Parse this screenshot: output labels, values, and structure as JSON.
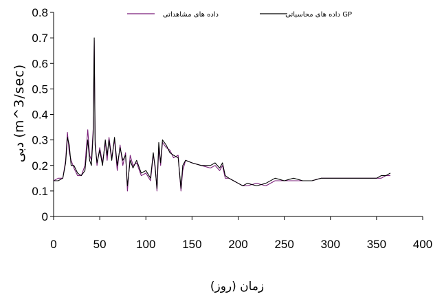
{
  "chart_data": {
    "type": "line",
    "title": "",
    "xlabel": "زمان (روز)",
    "ylabel": "دبی (m^3/sec)",
    "xlim": [
      0,
      400
    ],
    "ylim": [
      0,
      0.8
    ],
    "x_ticks": [
      "0",
      "50",
      "100",
      "150",
      "200",
      "250",
      "300",
      "350",
      "400"
    ],
    "y_ticks": [
      "0",
      "0.1",
      "0.2",
      "0.3",
      "0.4",
      "0.5",
      "0.6",
      "0.7",
      "0.8"
    ],
    "grid": false,
    "legend_position": "top",
    "series": [
      {
        "name": "داده های مشاهداتی",
        "color": "#7a1f7a",
        "points": [
          [
            0,
            0.14
          ],
          [
            5,
            0.15
          ],
          [
            10,
            0.15
          ],
          [
            13,
            0.22
          ],
          [
            15,
            0.33
          ],
          [
            17,
            0.25
          ],
          [
            19,
            0.22
          ],
          [
            22,
            0.19
          ],
          [
            26,
            0.16
          ],
          [
            30,
            0.16
          ],
          [
            34,
            0.2
          ],
          [
            37,
            0.34
          ],
          [
            39,
            0.24
          ],
          [
            41,
            0.22
          ],
          [
            43,
            0.35
          ],
          [
            44,
            0.69
          ],
          [
            45,
            0.3
          ],
          [
            47,
            0.2
          ],
          [
            50,
            0.27
          ],
          [
            53,
            0.21
          ],
          [
            56,
            0.29
          ],
          [
            58,
            0.22
          ],
          [
            60,
            0.31
          ],
          [
            63,
            0.23
          ],
          [
            66,
            0.3
          ],
          [
            69,
            0.18
          ],
          [
            72,
            0.28
          ],
          [
            75,
            0.2
          ],
          [
            78,
            0.25
          ],
          [
            80,
            0.1
          ],
          [
            83,
            0.24
          ],
          [
            86,
            0.2
          ],
          [
            90,
            0.21
          ],
          [
            95,
            0.16
          ],
          [
            100,
            0.17
          ],
          [
            105,
            0.14
          ],
          [
            108,
            0.24
          ],
          [
            110,
            0.2
          ],
          [
            112,
            0.1
          ],
          [
            114,
            0.27
          ],
          [
            116,
            0.2
          ],
          [
            118,
            0.29
          ],
          [
            122,
            0.27
          ],
          [
            126,
            0.26
          ],
          [
            130,
            0.23
          ],
          [
            135,
            0.24
          ],
          [
            138,
            0.1
          ],
          [
            140,
            0.18
          ],
          [
            143,
            0.22
          ],
          [
            150,
            0.21
          ],
          [
            160,
            0.2
          ],
          [
            170,
            0.19
          ],
          [
            175,
            0.2
          ],
          [
            180,
            0.18
          ],
          [
            183,
            0.2
          ],
          [
            186,
            0.15
          ],
          [
            190,
            0.15
          ],
          [
            195,
            0.14
          ],
          [
            200,
            0.13
          ],
          [
            205,
            0.12
          ],
          [
            210,
            0.12
          ],
          [
            220,
            0.13
          ],
          [
            230,
            0.12
          ],
          [
            240,
            0.14
          ],
          [
            250,
            0.14
          ],
          [
            260,
            0.14
          ],
          [
            270,
            0.14
          ],
          [
            280,
            0.14
          ],
          [
            290,
            0.15
          ],
          [
            300,
            0.15
          ],
          [
            310,
            0.15
          ],
          [
            320,
            0.15
          ],
          [
            330,
            0.15
          ],
          [
            340,
            0.15
          ],
          [
            350,
            0.15
          ],
          [
            355,
            0.15
          ],
          [
            360,
            0.16
          ],
          [
            365,
            0.16
          ]
        ]
      },
      {
        "name": "داده های محاسباتی GP",
        "color": "#000000",
        "points": [
          [
            0,
            0.14
          ],
          [
            5,
            0.14
          ],
          [
            10,
            0.15
          ],
          [
            13,
            0.21
          ],
          [
            15,
            0.31
          ],
          [
            17,
            0.28
          ],
          [
            19,
            0.2
          ],
          [
            22,
            0.2
          ],
          [
            26,
            0.17
          ],
          [
            30,
            0.16
          ],
          [
            34,
            0.18
          ],
          [
            37,
            0.3
          ],
          [
            39,
            0.22
          ],
          [
            41,
            0.2
          ],
          [
            43,
            0.33
          ],
          [
            44,
            0.7
          ],
          [
            45,
            0.28
          ],
          [
            47,
            0.21
          ],
          [
            50,
            0.26
          ],
          [
            53,
            0.2
          ],
          [
            56,
            0.3
          ],
          [
            58,
            0.24
          ],
          [
            60,
            0.3
          ],
          [
            63,
            0.22
          ],
          [
            66,
            0.31
          ],
          [
            69,
            0.2
          ],
          [
            72,
            0.27
          ],
          [
            75,
            0.22
          ],
          [
            78,
            0.24
          ],
          [
            80,
            0.12
          ],
          [
            83,
            0.22
          ],
          [
            86,
            0.19
          ],
          [
            90,
            0.22
          ],
          [
            95,
            0.17
          ],
          [
            100,
            0.18
          ],
          [
            105,
            0.15
          ],
          [
            108,
            0.25
          ],
          [
            110,
            0.19
          ],
          [
            112,
            0.11
          ],
          [
            114,
            0.29
          ],
          [
            116,
            0.21
          ],
          [
            118,
            0.3
          ],
          [
            122,
            0.28
          ],
          [
            126,
            0.25
          ],
          [
            130,
            0.24
          ],
          [
            135,
            0.23
          ],
          [
            138,
            0.11
          ],
          [
            140,
            0.2
          ],
          [
            143,
            0.22
          ],
          [
            150,
            0.21
          ],
          [
            160,
            0.2
          ],
          [
            170,
            0.2
          ],
          [
            175,
            0.21
          ],
          [
            180,
            0.19
          ],
          [
            183,
            0.21
          ],
          [
            186,
            0.16
          ],
          [
            190,
            0.15
          ],
          [
            195,
            0.14
          ],
          [
            200,
            0.13
          ],
          [
            205,
            0.12
          ],
          [
            210,
            0.13
          ],
          [
            220,
            0.12
          ],
          [
            230,
            0.13
          ],
          [
            240,
            0.15
          ],
          [
            250,
            0.14
          ],
          [
            260,
            0.15
          ],
          [
            270,
            0.14
          ],
          [
            280,
            0.14
          ],
          [
            290,
            0.15
          ],
          [
            300,
            0.15
          ],
          [
            310,
            0.15
          ],
          [
            320,
            0.15
          ],
          [
            330,
            0.15
          ],
          [
            340,
            0.15
          ],
          [
            350,
            0.15
          ],
          [
            355,
            0.16
          ],
          [
            360,
            0.16
          ],
          [
            365,
            0.17
          ]
        ]
      }
    ]
  }
}
